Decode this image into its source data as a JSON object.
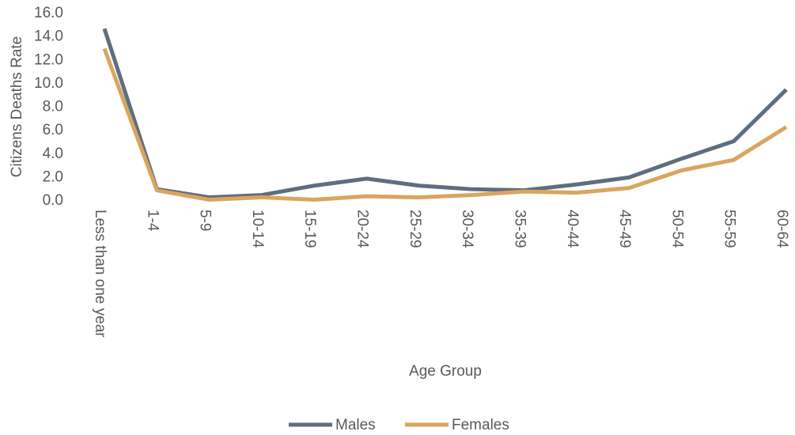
{
  "chart_data": {
    "type": "line",
    "categories": [
      "Less than one year",
      "1-4",
      "5-9",
      "10-14",
      "15-19",
      "20-24",
      "25-29",
      "30-34",
      "35-39",
      "40-44",
      "45-49",
      "50-54",
      "55-59",
      "60-64"
    ],
    "series": [
      {
        "name": "Males",
        "color": "#5f6e7e",
        "values": [
          14.7,
          1.0,
          0.3,
          0.5,
          1.3,
          1.9,
          1.3,
          1.0,
          0.9,
          1.4,
          2.0,
          3.6,
          5.1,
          9.5
        ]
      },
      {
        "name": "Females",
        "color": "#d9a55f",
        "values": [
          13.0,
          0.9,
          0.1,
          0.3,
          0.1,
          0.4,
          0.3,
          0.5,
          0.8,
          0.7,
          1.1,
          2.6,
          3.5,
          6.3
        ]
      }
    ],
    "x_label": "Age Group",
    "y_label": "Citizens Deaths Rate",
    "ylim": [
      0,
      16
    ],
    "yticks": [
      {
        "value": 0,
        "label": "0.0"
      },
      {
        "value": 2,
        "label": "2.0"
      },
      {
        "value": 4,
        "label": "4.0"
      },
      {
        "value": 6,
        "label": "6.0"
      },
      {
        "value": 8,
        "label": "8.0"
      },
      {
        "value": 10,
        "label": "10.0"
      },
      {
        "value": 12,
        "label": "12.0"
      },
      {
        "value": 14,
        "label": "14.0"
      },
      {
        "value": 16,
        "label": "16.0"
      }
    ],
    "grid": false,
    "legend": "bottom"
  }
}
